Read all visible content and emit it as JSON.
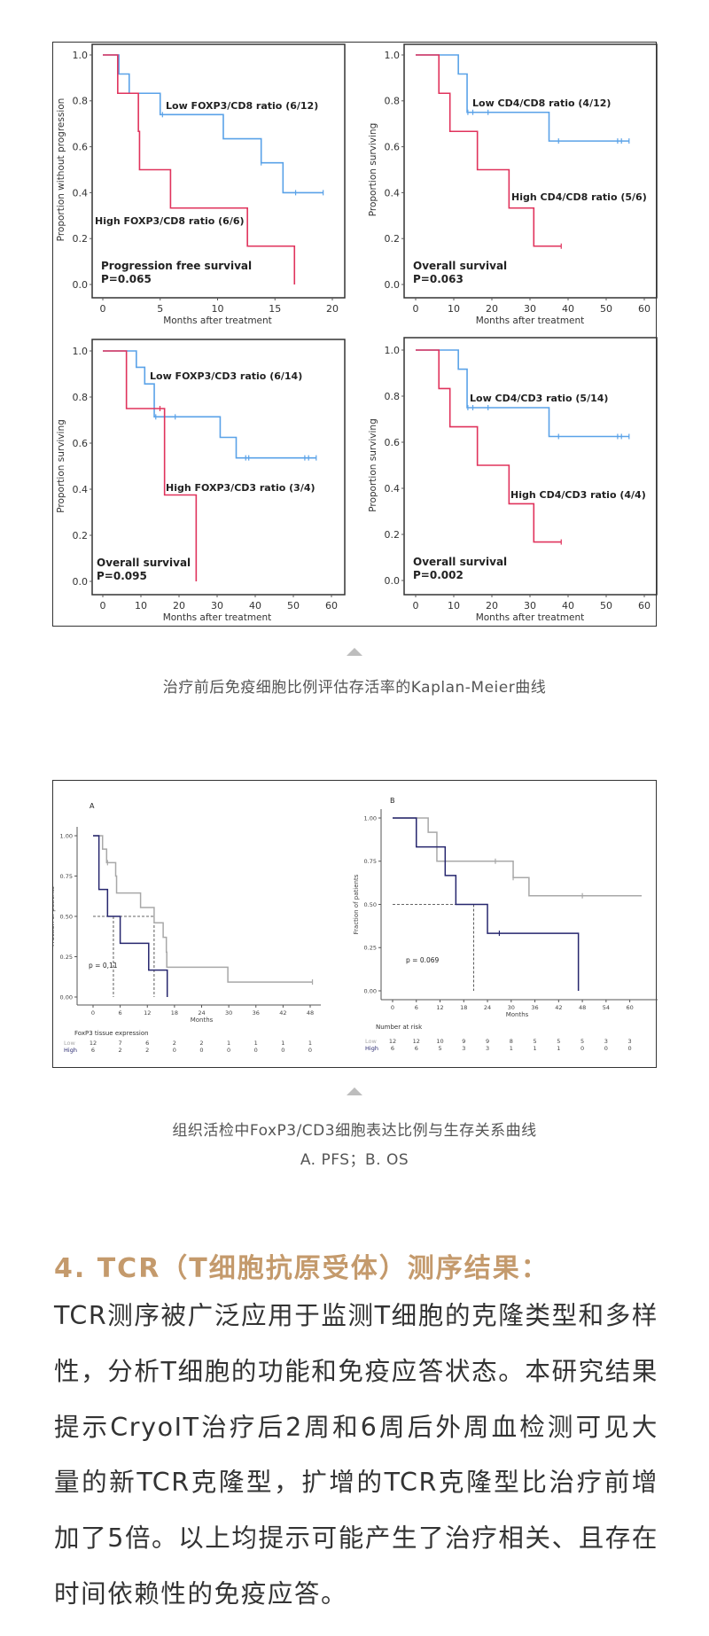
{
  "figure1": {
    "caption": "治疗前后免疫细胞比例评估存活率的Kaplan-Meier曲线"
  },
  "figure2": {
    "caption_line1": "组织活检中FoxP3/CD3细胞表达比例与生存关系曲线",
    "caption_line2": "A. PFS；B. OS"
  },
  "section": {
    "heading": "4. TCR（T细胞抗原受体）测序结果：",
    "body": "TCR测序被广泛应用于监测T细胞的克隆类型和多样性，分析T细胞的功能和免疫应答状态。本研究结果提示CryoIT治疗后2周和6周后外周血检测可见大量的新TCR克隆型，扩增的TCR克隆型比治疗前增加了5倍。以上均提示可能产生了治疗相关、且存在时间依赖性的免疫应答。"
  },
  "chart_data": [
    {
      "type": "line",
      "subtype": "kaplan-meier",
      "xlabel": "Months after treatment",
      "ylabel": "Proportion without progression",
      "xlim": [
        0,
        20
      ],
      "ylim": [
        0,
        1
      ],
      "xticks": [
        0,
        5,
        10,
        15,
        20
      ],
      "yticks": [
        "0.0",
        "0.2",
        "0.4",
        "0.6",
        "0.8",
        "1.0"
      ],
      "grid": false,
      "annotations": [
        "Progression free survival",
        "P=0.065"
      ],
      "series": [
        {
          "name": "Low FOXP3/CD8 ratio (6/12)",
          "color": "#5aa2e8",
          "steps": [
            [
              0,
              1
            ],
            [
              1.4,
              0.917
            ],
            [
              2.3,
              0.833
            ],
            [
              5,
              0.74
            ],
            [
              10.5,
              0.635
            ],
            [
              13.8,
              0.53
            ],
            [
              15.7,
              0.4
            ],
            [
              19.2,
              0.4
            ]
          ],
          "censored": [
            5.2,
            13.8,
            16.8,
            19.2
          ]
        },
        {
          "name": "High FOXP3/CD8 ratio (6/6)",
          "color": "#e0335c",
          "steps": [
            [
              0,
              1
            ],
            [
              1.3,
              0.833
            ],
            [
              3.1,
              0.667
            ],
            [
              3.2,
              0.5
            ],
            [
              5.9,
              0.333
            ],
            [
              12.6,
              0.167
            ],
            [
              16.7,
              0
            ],
            [
              16.7,
              0
            ]
          ],
          "censored": []
        }
      ]
    },
    {
      "type": "line",
      "subtype": "kaplan-meier",
      "xlabel": "Months after treatment",
      "ylabel": "Proportion surviving",
      "xlim": [
        0,
        60
      ],
      "ylim": [
        0,
        1
      ],
      "xticks": [
        0,
        10,
        20,
        30,
        40,
        50,
        60
      ],
      "yticks": [
        "0.0",
        "0.2",
        "0.4",
        "0.6",
        "0.8",
        "1.0"
      ],
      "grid": false,
      "annotations": [
        "Overall survival",
        "P=0.063"
      ],
      "series": [
        {
          "name": "Low CD4/CD8 ratio (4/12)",
          "color": "#5aa2e8",
          "steps": [
            [
              0,
              1
            ],
            [
              11.2,
              0.917
            ],
            [
              13.5,
              0.75
            ],
            [
              35,
              0.625
            ],
            [
              56,
              0.625
            ]
          ],
          "censored": [
            13.7,
            15,
            19,
            37.5,
            53,
            54,
            56
          ]
        },
        {
          "name": "High CD4/CD8 ratio (5/6)",
          "color": "#e0335c",
          "steps": [
            [
              0,
              1
            ],
            [
              6.1,
              0.833
            ],
            [
              9,
              0.667
            ],
            [
              16.2,
              0.5
            ],
            [
              24.5,
              0.333
            ],
            [
              31,
              0.167
            ],
            [
              38.2,
              0.167
            ]
          ],
          "censored": [
            38.2
          ]
        }
      ]
    },
    {
      "type": "line",
      "subtype": "kaplan-meier",
      "xlabel": "Months after treatment",
      "ylabel": "Proportion surviving",
      "xlim": [
        0,
        60
      ],
      "ylim": [
        0,
        1
      ],
      "xticks": [
        0,
        10,
        20,
        30,
        40,
        50,
        60
      ],
      "yticks": [
        "0.0",
        "0.2",
        "0.4",
        "0.6",
        "0.8",
        "1.0"
      ],
      "grid": false,
      "annotations": [
        "Overall survival",
        "P=0.095"
      ],
      "series": [
        {
          "name": "Low FOXP3/CD3 ratio (6/14)",
          "color": "#5aa2e8",
          "steps": [
            [
              0,
              1
            ],
            [
              8.8,
              0.929
            ],
            [
              11,
              0.857
            ],
            [
              13.5,
              0.714
            ],
            [
              30.8,
              0.625
            ],
            [
              35,
              0.536
            ],
            [
              56,
              0.536
            ]
          ],
          "censored": [
            13.9,
            19,
            37.5,
            38.3,
            53,
            54,
            56
          ]
        },
        {
          "name": "High FOXP3/CD3 ratio (3/4)",
          "color": "#e0335c",
          "steps": [
            [
              0,
              1
            ],
            [
              6.2,
              0.75
            ],
            [
              16.2,
              0.375
            ],
            [
              24.5,
              0
            ],
            [
              24.5,
              0
            ]
          ],
          "censored": [
            15
          ]
        }
      ]
    },
    {
      "type": "line",
      "subtype": "kaplan-meier",
      "xlabel": "Months after treatment",
      "ylabel": "Proportion surviving",
      "xlim": [
        0,
        60
      ],
      "ylim": [
        0,
        1
      ],
      "xticks": [
        0,
        10,
        20,
        30,
        40,
        50,
        60
      ],
      "yticks": [
        "0.0",
        "0.2",
        "0.4",
        "0.6",
        "0.8",
        "1.0"
      ],
      "grid": false,
      "annotations": [
        "Overall survival",
        "P=0.002"
      ],
      "series": [
        {
          "name": "Low CD4/CD3 ratio (5/14)",
          "color": "#5aa2e8",
          "steps": [
            [
              0,
              1
            ],
            [
              11.2,
              0.917
            ],
            [
              13.5,
              0.75
            ],
            [
              35,
              0.625
            ],
            [
              56,
              0.625
            ]
          ],
          "censored": [
            13.7,
            15,
            19,
            37.5,
            53,
            54,
            56
          ]
        },
        {
          "name": "High CD4/CD3 ratio (4/4)",
          "color": "#e0335c",
          "steps": [
            [
              0,
              1
            ],
            [
              6.1,
              0.833
            ],
            [
              9,
              0.667
            ],
            [
              16.2,
              0.5
            ],
            [
              24.5,
              0.333
            ],
            [
              31,
              0.167
            ],
            [
              38.2,
              0.167
            ]
          ],
          "censored": [
            38.2
          ]
        }
      ]
    },
    {
      "type": "line",
      "subtype": "kaplan-meier",
      "panel": "A",
      "xlabel": "Months",
      "ylabel": "Fraction of patients",
      "xlim": [
        0,
        48
      ],
      "ylim": [
        0,
        1
      ],
      "xticks": [
        0,
        6,
        12,
        18,
        24,
        30,
        36,
        42,
        48
      ],
      "yticks": [
        "0.00",
        "0.25",
        "0.50",
        "0.75",
        "1.00"
      ],
      "grid": false,
      "annotations": [
        "p = 0,11"
      ],
      "median_line": {
        "y": 0.5,
        "x": [
          4.5,
          13.5
        ]
      },
      "risk_table": {
        "title": "FoxP3 tissue expression",
        "rows": [
          {
            "label": "Low",
            "values": [
              12,
              7,
              6,
              2,
              2,
              1,
              1,
              1,
              1
            ]
          },
          {
            "label": "High",
            "values": [
              6,
              2,
              2,
              0,
              0,
              0,
              0,
              0,
              0
            ]
          }
        ]
      },
      "series": [
        {
          "name": "Low",
          "color": "#a8a8a8",
          "steps": [
            [
              0,
              1
            ],
            [
              2.1,
              0.917
            ],
            [
              3,
              0.833
            ],
            [
              5,
              0.75
            ],
            [
              5.2,
              0.645
            ],
            [
              10.5,
              0.555
            ],
            [
              13.5,
              0.46
            ],
            [
              15.5,
              0.37
            ],
            [
              16.2,
              0.278
            ],
            [
              16.3,
              0.185
            ],
            [
              29.8,
              0.093
            ],
            [
              48.5,
              0.093
            ]
          ],
          "censored": [
            3.2,
            48.5
          ]
        },
        {
          "name": "High",
          "color": "#26266e",
          "steps": [
            [
              0,
              1
            ],
            [
              1.3,
              0.667
            ],
            [
              3.2,
              0.5
            ],
            [
              6,
              0.333
            ],
            [
              12.3,
              0.167
            ],
            [
              16.4,
              0
            ],
            [
              16.4,
              0
            ]
          ],
          "censored": []
        }
      ]
    },
    {
      "type": "line",
      "subtype": "kaplan-meier",
      "panel": "B",
      "xlabel": "Months",
      "ylabel": "Fraction of patients",
      "xlim": [
        0,
        63
      ],
      "ylim": [
        0,
        1
      ],
      "xticks": [
        0,
        6,
        12,
        18,
        24,
        30,
        36,
        42,
        48,
        54,
        60
      ],
      "yticks": [
        "0.00",
        "0.25",
        "0.50",
        "0.75",
        "1.00"
      ],
      "grid": false,
      "annotations": [
        "p = 0.069"
      ],
      "median_line": {
        "y": 0.5,
        "x": [
          20.5
        ]
      },
      "risk_table": {
        "title": "Number at risk",
        "rows": [
          {
            "label": "Low",
            "values": [
              12,
              12,
              10,
              9,
              9,
              8,
              5,
              5,
              5,
              3,
              3
            ]
          },
          {
            "label": "High",
            "values": [
              6,
              6,
              5,
              3,
              3,
              1,
              1,
              1,
              0,
              0,
              0
            ]
          }
        ]
      },
      "series": [
        {
          "name": "Low",
          "color": "#a8a8a8",
          "steps": [
            [
              0,
              1
            ],
            [
              9,
              0.917
            ],
            [
              11.2,
              0.75
            ],
            [
              30.5,
              0.655
            ],
            [
              34.5,
              0.55
            ],
            [
              63,
              0.55
            ]
          ],
          "censored": [
            26,
            30.5,
            48
          ]
        },
        {
          "name": "High",
          "color": "#26266e",
          "steps": [
            [
              0,
              1
            ],
            [
              6,
              0.833
            ],
            [
              13.3,
              0.667
            ],
            [
              16,
              0.5
            ],
            [
              24,
              0.333
            ],
            [
              47,
              0
            ],
            [
              47,
              0
            ]
          ],
          "censored": [
            27
          ]
        }
      ]
    }
  ]
}
